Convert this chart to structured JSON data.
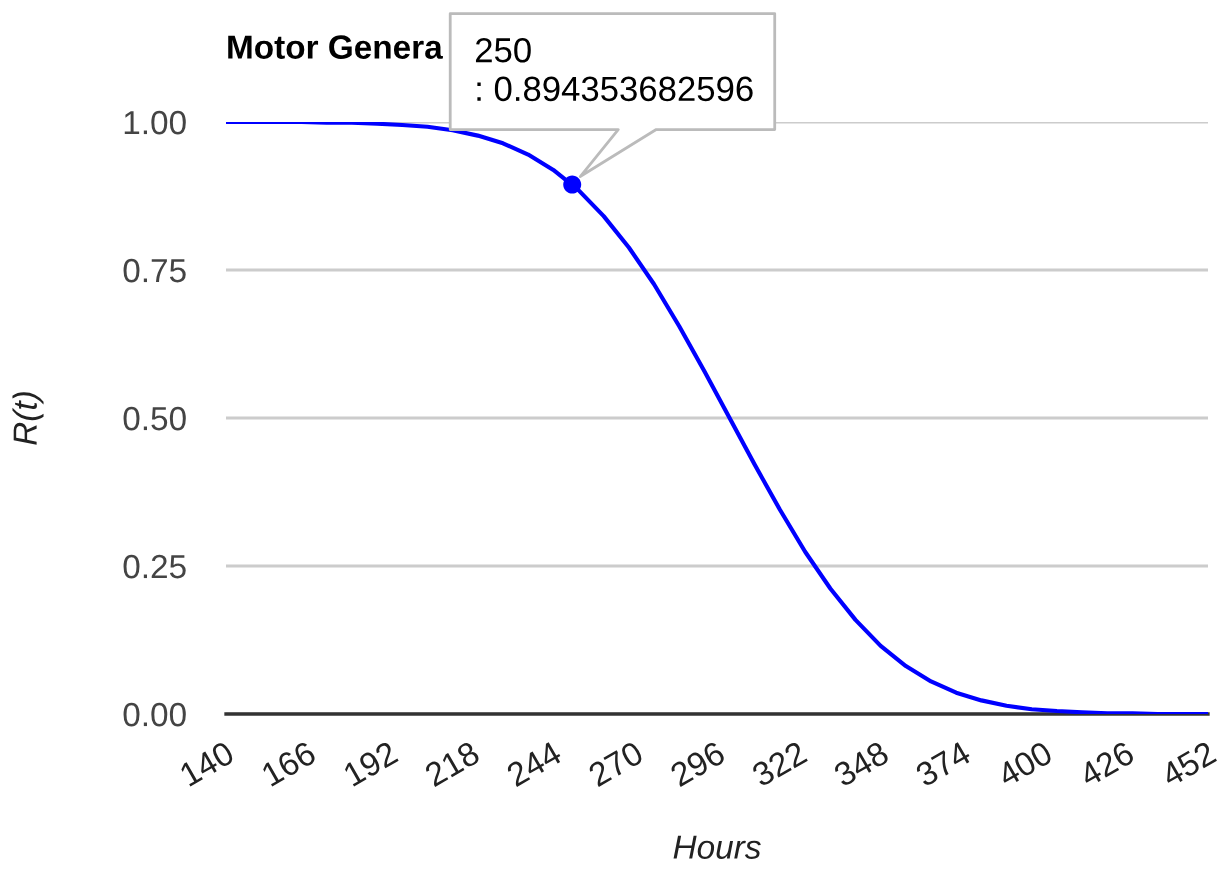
{
  "chart_data": {
    "type": "line",
    "title": "Motor Genera",
    "xlabel": "Hours",
    "ylabel": "R(t)",
    "x": [
      140,
      148,
      156,
      164,
      172,
      180,
      188,
      196,
      204,
      212,
      220,
      228,
      236,
      244,
      252,
      260,
      268,
      276,
      284,
      292,
      300,
      308,
      316,
      324,
      332,
      340,
      348,
      356,
      364,
      372,
      380,
      388,
      396,
      404,
      412,
      420,
      428,
      436,
      444,
      452
    ],
    "series": [
      {
        "color": "#0000ff",
        "values": [
          1.0,
          1.0,
          1.0,
          1.0,
          0.999,
          0.999,
          0.997,
          0.995,
          0.992,
          0.986,
          0.977,
          0.964,
          0.945,
          0.919,
          0.885,
          0.841,
          0.788,
          0.726,
          0.655,
          0.579,
          0.5,
          0.421,
          0.345,
          0.274,
          0.212,
          0.159,
          0.115,
          0.081,
          0.055,
          0.036,
          0.023,
          0.014,
          0.008,
          0.005,
          0.003,
          0.001,
          0.001,
          0.0,
          0.0,
          0.0
        ]
      },
      {
        "type": "scatter",
        "x": [
          250
        ],
        "values": [
          0.894353682596
        ],
        "color": "#0000ff",
        "marker": "circle"
      }
    ],
    "xlim": [
      140,
      452
    ],
    "xticks": [
      140,
      166,
      192,
      218,
      244,
      270,
      296,
      322,
      348,
      374,
      400,
      426,
      452
    ],
    "ylim": [
      0,
      1
    ],
    "yticks": [
      {
        "value": 0,
        "label": "0.00"
      },
      {
        "value": 0.25,
        "label": "0.25"
      },
      {
        "value": 0.5,
        "label": "0.50"
      },
      {
        "value": 0.75,
        "label": "0.75"
      },
      {
        "value": 1,
        "label": "1.00"
      }
    ],
    "grid": "y",
    "line_style": "solid",
    "annotations": [
      {
        "text": "250\n: 0.894353682596",
        "x": 250,
        "y": 0.894353682596
      }
    ]
  }
}
